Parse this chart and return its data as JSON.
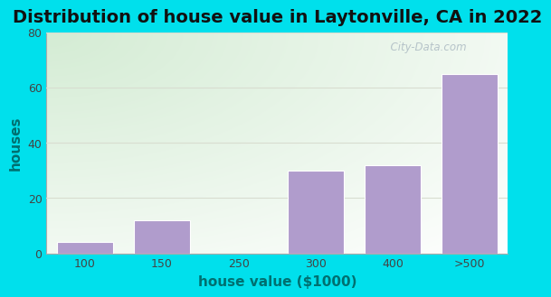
{
  "title": "Distribution of house value in Laytonville, CA in 2022",
  "xlabel": "house value ($1000)",
  "ylabel": "houses",
  "categories": [
    "100",
    "150",
    "250",
    "300",
    "400",
    ">500"
  ],
  "values": [
    4,
    12,
    0,
    30,
    32,
    65
  ],
  "bar_color": "#b09ccc",
  "bar_edgecolor": "#ffffff",
  "ylim": [
    0,
    80
  ],
  "yticks": [
    0,
    20,
    40,
    60,
    80
  ],
  "outer_bg": "#00e0ec",
  "plot_bg_topleft": "#d4ecd4",
  "plot_bg_right": "#ffffff",
  "plot_bg_bottom": "#d8ece4",
  "title_fontsize": 14,
  "axis_label_fontsize": 11,
  "tick_fontsize": 9,
  "watermark_text": "  City-Data.com",
  "watermark_color": "#b0bec5",
  "title_color": "#111111",
  "axis_label_color": "#007070",
  "grid_color": "#d8ddd0",
  "spine_color": "#aaaaaa"
}
